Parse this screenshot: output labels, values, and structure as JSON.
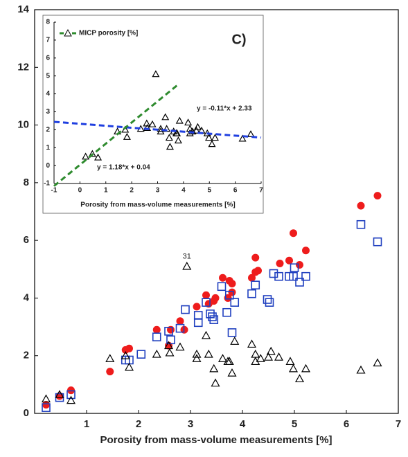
{
  "chart_data": [
    {
      "type": "scatter",
      "x_label": "Porosity from mass-volume measurements [%]",
      "xlim": [
        0,
        7
      ],
      "xticks": [
        0,
        1,
        2,
        3,
        4,
        5,
        6,
        7
      ],
      "ylim": [
        0,
        14
      ],
      "yticks": [
        0,
        2,
        4,
        6,
        8,
        10,
        12,
        14
      ],
      "annotations": [
        "31"
      ],
      "series": [
        {
          "marker": "circle",
          "color": "#ee1c1c",
          "x": [
            0.22,
            0.48,
            0.7,
            1.45,
            1.75,
            1.82,
            2.35,
            2.58,
            2.62,
            2.8,
            2.88,
            3.12,
            3.3,
            3.35,
            3.45,
            3.48,
            3.62,
            3.72,
            3.75,
            3.8,
            3.8,
            4.18,
            4.25,
            4.25,
            4.3,
            4.72,
            4.9,
            4.98,
            5.1,
            5.22,
            6.28,
            6.6
          ],
          "values": [
            0.3,
            0.6,
            0.8,
            1.45,
            2.2,
            2.25,
            2.9,
            2.35,
            2.9,
            3.2,
            2.9,
            3.7,
            4.1,
            3.8,
            3.9,
            4.0,
            4.7,
            4.0,
            4.6,
            4.5,
            4.2,
            4.7,
            4.9,
            5.4,
            4.95,
            5.2,
            5.3,
            6.25,
            5.15,
            5.65,
            7.2,
            7.55
          ]
        },
        {
          "marker": "square",
          "color": "#1f3fbf",
          "x": [
            0.22,
            0.48,
            0.7,
            1.75,
            1.82,
            2.05,
            2.35,
            2.58,
            2.62,
            2.8,
            2.9,
            3.15,
            3.15,
            3.3,
            3.38,
            3.42,
            3.45,
            3.6,
            3.7,
            3.75,
            3.8,
            3.85,
            4.18,
            4.25,
            4.48,
            4.52,
            4.6,
            4.7,
            4.9,
            4.98,
            5.0,
            5.1,
            5.22,
            6.28,
            6.6
          ],
          "values": [
            0.2,
            0.55,
            0.65,
            1.85,
            1.85,
            2.05,
            2.65,
            2.85,
            2.55,
            2.95,
            3.6,
            3.15,
            3.4,
            3.85,
            3.45,
            3.35,
            3.25,
            4.4,
            3.5,
            4.1,
            2.8,
            3.85,
            4.15,
            4.45,
            3.95,
            3.85,
            4.85,
            4.75,
            4.75,
            4.75,
            5.05,
            4.55,
            4.75,
            6.55,
            5.95
          ]
        },
        {
          "marker": "triangle",
          "color": "#000000",
          "x": [
            0.22,
            0.48,
            0.7,
            1.45,
            1.75,
            1.82,
            2.35,
            2.58,
            2.6,
            2.8,
            2.93,
            3.12,
            3.12,
            3.3,
            3.35,
            3.45,
            3.48,
            3.62,
            3.72,
            3.75,
            3.8,
            3.85,
            4.18,
            4.25,
            4.25,
            4.35,
            4.5,
            4.55,
            4.7,
            4.92,
            4.98,
            5.1,
            5.22,
            6.28,
            6.6
          ],
          "values": [
            0.5,
            0.65,
            0.45,
            1.9,
            2.0,
            1.6,
            2.05,
            2.35,
            2.1,
            2.3,
            5.1,
            2.05,
            1.9,
            2.7,
            2.05,
            1.55,
            1.05,
            1.9,
            1.8,
            1.8,
            1.4,
            2.5,
            2.4,
            1.8,
            2.05,
            1.9,
            1.95,
            2.15,
            1.95,
            1.8,
            1.55,
            1.2,
            1.55,
            1.5,
            1.75
          ]
        }
      ]
    },
    {
      "type": "scatter",
      "label": "C)",
      "x_label": "Porosity from mass-volume measurements [%]",
      "xlim": [
        -1,
        7
      ],
      "xticks": [
        -1,
        0,
        1,
        2,
        3,
        4,
        5,
        6,
        7
      ],
      "ylim": [
        -1,
        8
      ],
      "yticks": [
        -1,
        0,
        1,
        2,
        3,
        4,
        5,
        6,
        7,
        8
      ],
      "annotations": [
        "y = -0.11*x + 2.33",
        "y = 1.18*x + 0.04"
      ],
      "series": [
        {
          "name": "MICP porosity [%]",
          "marker": "triangle",
          "color": "#000000",
          "legend_color": "#2e8b2e",
          "x": [
            0.22,
            0.48,
            0.7,
            1.45,
            1.75,
            1.82,
            2.35,
            2.58,
            2.6,
            2.8,
            2.93,
            3.12,
            3.12,
            3.3,
            3.35,
            3.45,
            3.48,
            3.62,
            3.72,
            3.75,
            3.8,
            3.85,
            4.18,
            4.25,
            4.25,
            4.35,
            4.5,
            4.55,
            4.7,
            4.92,
            4.98,
            5.1,
            5.22,
            6.28,
            6.6
          ],
          "values": [
            0.5,
            0.65,
            0.45,
            1.9,
            2.0,
            1.6,
            2.05,
            2.35,
            2.1,
            2.3,
            5.1,
            2.05,
            1.9,
            2.7,
            2.05,
            1.55,
            1.05,
            1.9,
            1.8,
            1.8,
            1.4,
            2.5,
            2.4,
            1.8,
            2.05,
            1.9,
            1.95,
            2.15,
            1.95,
            1.8,
            1.55,
            1.2,
            1.55,
            1.5,
            1.75
          ]
        },
        {
          "marker": "dashed-line",
          "color": "#1f3fe0",
          "x": [
            -1,
            7
          ],
          "values": [
            2.44,
            1.56
          ]
        },
        {
          "marker": "dashed-line",
          "color": "#2e8b2e",
          "x": [
            -1,
            3.75
          ],
          "values": [
            -1.14,
            4.47
          ]
        }
      ]
    }
  ]
}
